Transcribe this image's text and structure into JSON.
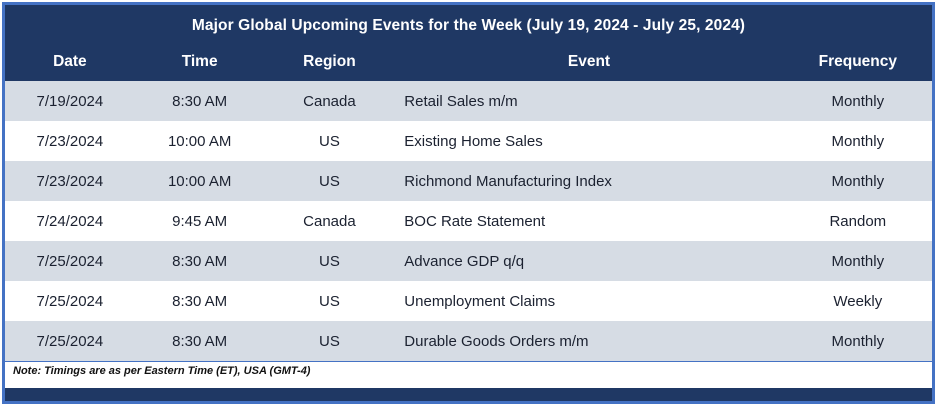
{
  "title": "Major Global Upcoming Events for the Week (July 19, 2024 - July 25, 2024)",
  "note": "Note: Timings are as per Eastern Time (ET), USA (GMT-4)",
  "colors": {
    "header_navy": "#1F3864",
    "border_blue": "#4472C4",
    "row_shaded": "#D6DCE4",
    "row_white": "#FFFFFF",
    "header_text": "#FFFFFF",
    "cell_text": "#1B2130"
  },
  "table": {
    "headers": [
      "Date",
      "Time",
      "Region",
      "Event",
      "Frequency"
    ],
    "rows": [
      [
        "7/19/2024",
        "8:30 AM",
        "Canada",
        "Retail Sales m/m",
        "Monthly"
      ],
      [
        "7/23/2024",
        "10:00 AM",
        "US",
        "Existing Home Sales",
        "Monthly"
      ],
      [
        "7/23/2024",
        "10:00 AM",
        "US",
        "Richmond Manufacturing Index",
        "Monthly"
      ],
      [
        "7/24/2024",
        "9:45 AM",
        "Canada",
        "BOC Rate Statement",
        "Random"
      ],
      [
        "7/25/2024",
        "8:30 AM",
        "US",
        "Advance GDP q/q",
        "Monthly"
      ],
      [
        "7/25/2024",
        "8:30 AM",
        "US",
        "Unemployment Claims",
        "Weekly"
      ],
      [
        "7/25/2024",
        "8:30 AM",
        "US",
        "Durable Goods Orders m/m",
        "Monthly"
      ]
    ]
  }
}
